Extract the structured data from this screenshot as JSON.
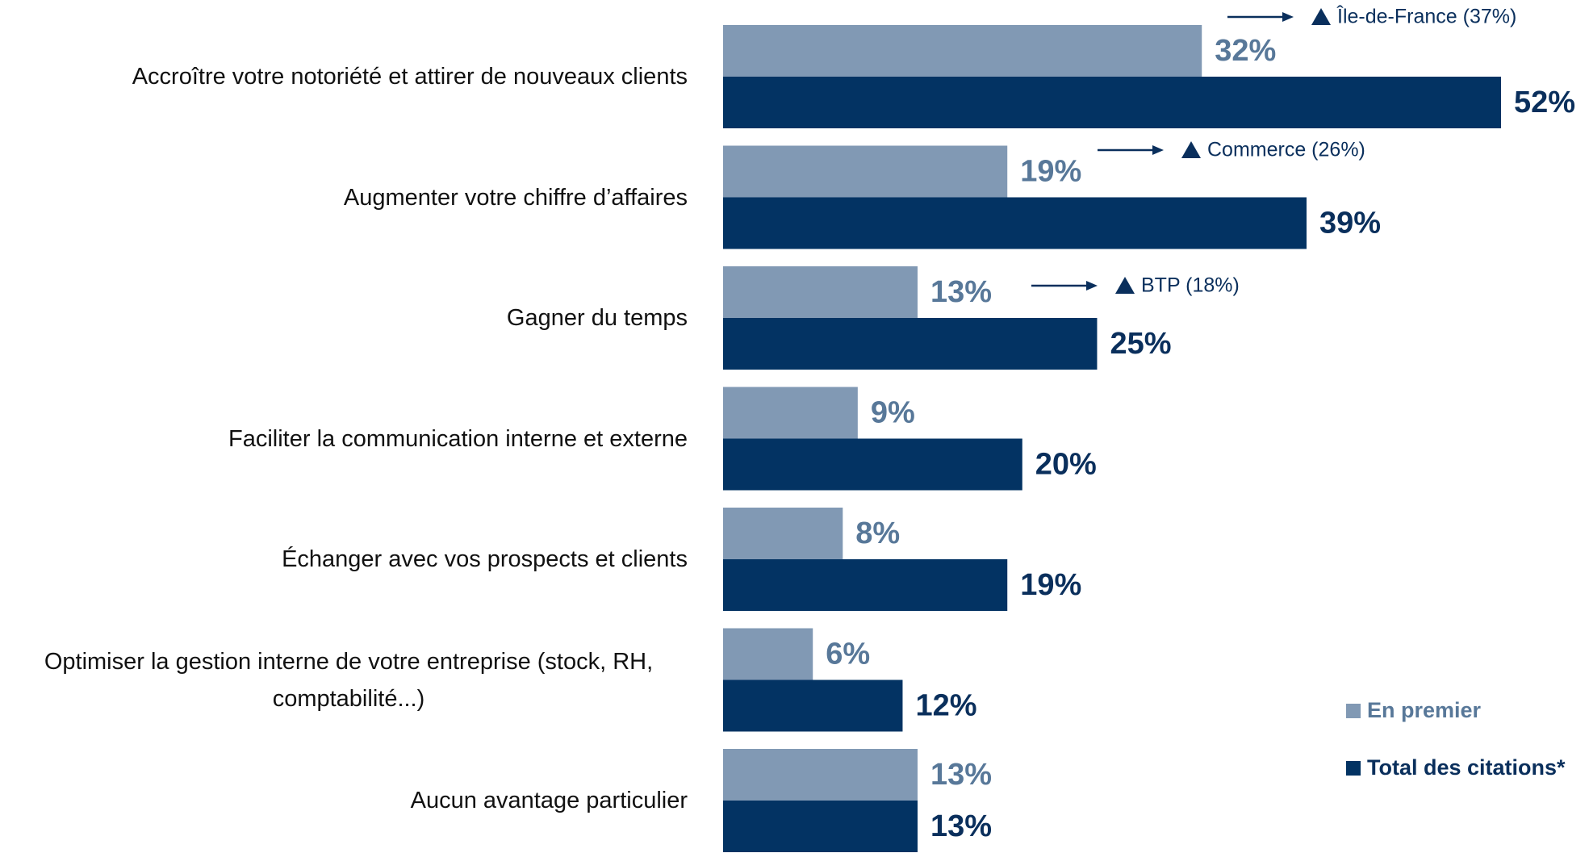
{
  "chart_data": {
    "type": "bar",
    "orientation": "horizontal",
    "categories": [
      "Accroître votre notoriété et attirer de nouveaux clients",
      "Augmenter votre chiffre d’affaires",
      "Gagner du temps",
      "Faciliter la communication interne et externe",
      "Échanger avec vos prospects et clients",
      "Optimiser la gestion interne de votre entreprise (stock, RH, comptabilité...)",
      "Aucun avantage particulier"
    ],
    "series": [
      {
        "name": "En premier",
        "color": "#8199b4",
        "label_color": "#587899",
        "values": [
          32,
          19,
          13,
          9,
          8,
          6,
          13
        ],
        "value_labels": [
          "32%",
          "19%",
          "13%",
          "9%",
          "8%",
          "6%",
          "13%"
        ]
      },
      {
        "name": "Total des citations*",
        "color": "#033363",
        "label_color": "#0a2f5c",
        "values": [
          52,
          39,
          25,
          20,
          19,
          12,
          13
        ],
        "value_labels": [
          "52%",
          "39%",
          "25%",
          "20%",
          "19%",
          "12%",
          "13%"
        ]
      }
    ],
    "annotations": [
      "Île-de-France (37%)",
      "Commerce (26%)",
      "BTP (18%)"
    ],
    "legend": "right"
  }
}
